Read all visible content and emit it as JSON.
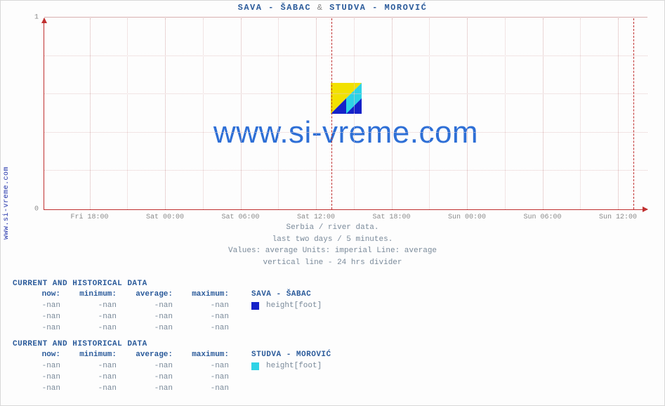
{
  "sidebar_url": "www.si-vreme.com",
  "title_parts": {
    "left": "SAVA -  ŠABAC",
    "amp": "&",
    "right": "STUDVA -  MOROVIĆ"
  },
  "watermark_text": "www.si-vreme.com",
  "caption_lines": [
    "Serbia / river data.",
    "last two days / 5 minutes.",
    "Values: average  Units: imperial  Line: average",
    "vertical line - 24 hrs  divider"
  ],
  "chart": {
    "type": "line",
    "background_color": "#fdfdfd",
    "axis_color": "#c03030",
    "major_grid_color": "#d8b0b0",
    "minor_grid_color": "#e6cccc",
    "ylim": [
      0,
      1
    ],
    "yticks": [
      {
        "pos": 0.0,
        "label": "0"
      },
      {
        "pos": 1.0,
        "label": "1"
      }
    ],
    "minor_y": [
      0.2,
      0.4,
      0.6,
      0.8
    ],
    "xticks": [
      {
        "pos": 0.075,
        "label": "Fri 18:00"
      },
      {
        "pos": 0.2,
        "label": "Sat 00:00"
      },
      {
        "pos": 0.325,
        "label": "Sat 06:00"
      },
      {
        "pos": 0.45,
        "label": "Sat 12:00"
      },
      {
        "pos": 0.575,
        "label": "Sat 18:00"
      },
      {
        "pos": 0.7,
        "label": "Sun 00:00"
      },
      {
        "pos": 0.825,
        "label": "Sun 06:00"
      },
      {
        "pos": 0.95,
        "label": "Sun 12:00"
      }
    ],
    "vertical_markers": [
      0.475,
      0.975
    ],
    "logo_colors": {
      "yellow": "#f2e100",
      "cyan": "#2ed3e6",
      "blue": "#1522c9"
    }
  },
  "tables": [
    {
      "heading": "CURRENT AND HISTORICAL DATA",
      "series_name": "SAVA -  ŠABAC",
      "swatch_color": "#1522c9",
      "unit": "height[foot]",
      "columns": [
        "now:",
        "minimum:",
        "average:",
        "maximum:"
      ],
      "rows": [
        [
          "-nan",
          "-nan",
          "-nan",
          "-nan"
        ],
        [
          "-nan",
          "-nan",
          "-nan",
          "-nan"
        ],
        [
          "-nan",
          "-nan",
          "-nan",
          "-nan"
        ]
      ]
    },
    {
      "heading": "CURRENT AND HISTORICAL DATA",
      "series_name": "STUDVA -  MOROVIĆ",
      "swatch_color": "#2ed3e6",
      "unit": "height[foot]",
      "columns": [
        "now:",
        "minimum:",
        "average:",
        "maximum:"
      ],
      "rows": [
        [
          "-nan",
          "-nan",
          "-nan",
          "-nan"
        ],
        [
          "-nan",
          "-nan",
          "-nan",
          "-nan"
        ],
        [
          "-nan",
          "-nan",
          "-nan",
          "-nan"
        ]
      ]
    }
  ]
}
